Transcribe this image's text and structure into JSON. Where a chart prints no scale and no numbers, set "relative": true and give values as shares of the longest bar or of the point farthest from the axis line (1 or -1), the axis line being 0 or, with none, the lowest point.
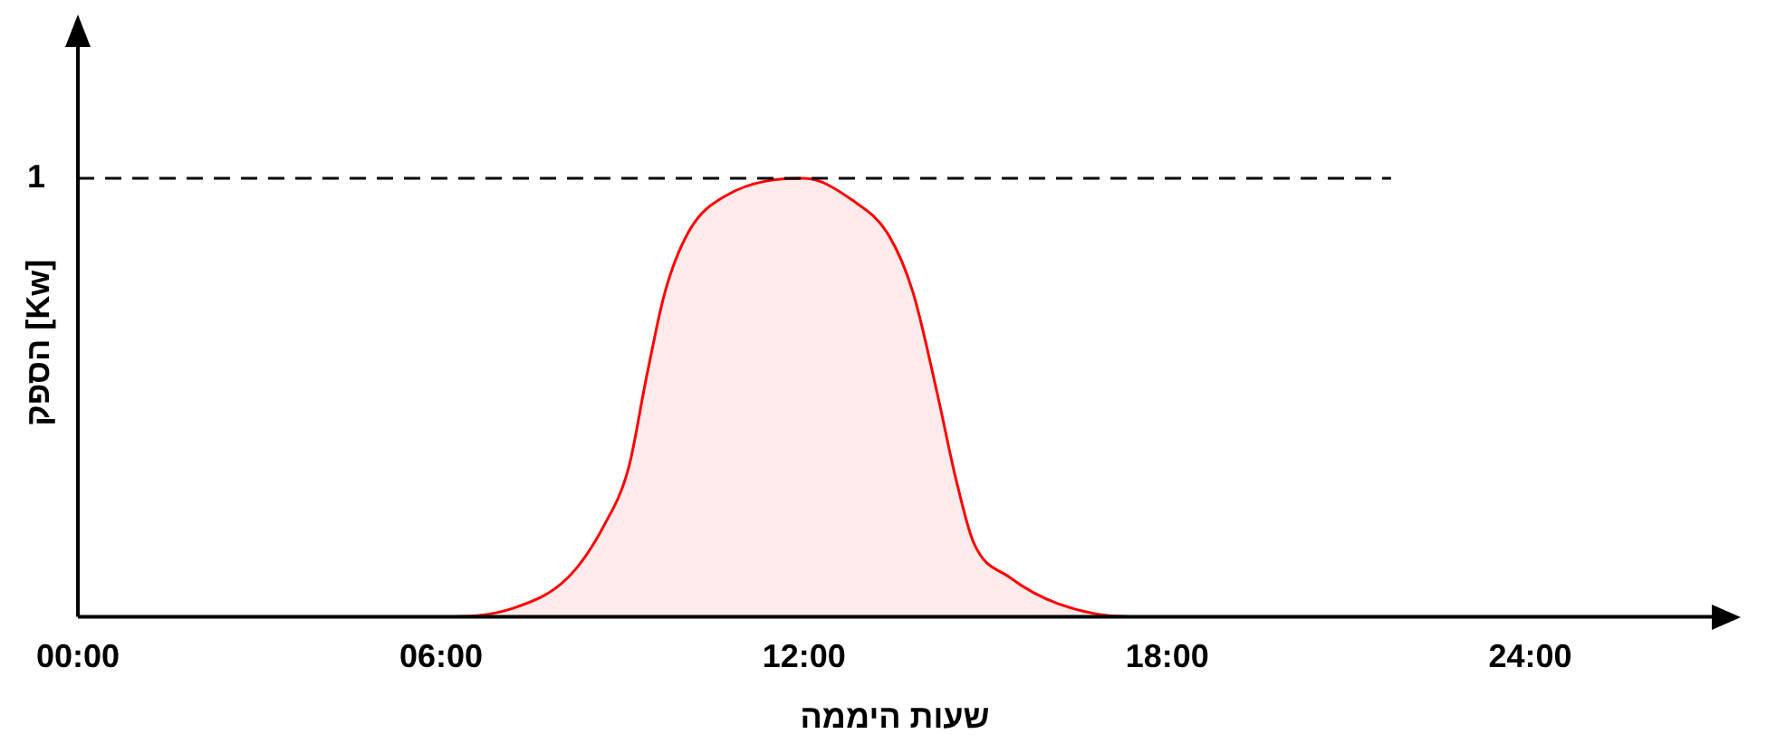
{
  "chart_data": {
    "type": "area",
    "relative": true,
    "xlabel": "שעות היממה",
    "ylabel": "הספק [Kw]",
    "x": [
      3.9,
      6,
      7.2,
      8.1,
      8.7,
      9.1,
      9.4,
      9.7,
      10.1,
      10.7,
      12,
      12.8,
      13.4,
      13.8,
      14.2,
      14.5,
      14.8,
      15.4,
      16.2,
      17.4,
      18.9
    ],
    "series": [
      {
        "color": "#ff0000",
        "values": [
          0,
          0,
          0.02,
          0.09,
          0.21,
          0.34,
          0.55,
          0.74,
          0.88,
          0.96,
          1,
          0.95,
          0.87,
          0.74,
          0.51,
          0.32,
          0.17,
          0.09,
          0.03,
          0,
          0
        ]
      }
    ],
    "xlim": [
      0,
      27
    ],
    "xticks": [
      {
        "value": 0,
        "label": "00:00"
      },
      {
        "value": 6,
        "label": "06:00"
      },
      {
        "value": 12,
        "label": "12:00"
      },
      {
        "value": 18,
        "label": "18:00"
      },
      {
        "value": 24,
        "label": "24:00"
      }
    ],
    "ref_lines": [
      {
        "axis": "y",
        "value": 1,
        "label": "1",
        "color": "#000000",
        "line_style": "dashed"
      }
    ],
    "grid": false,
    "legend": false
  }
}
